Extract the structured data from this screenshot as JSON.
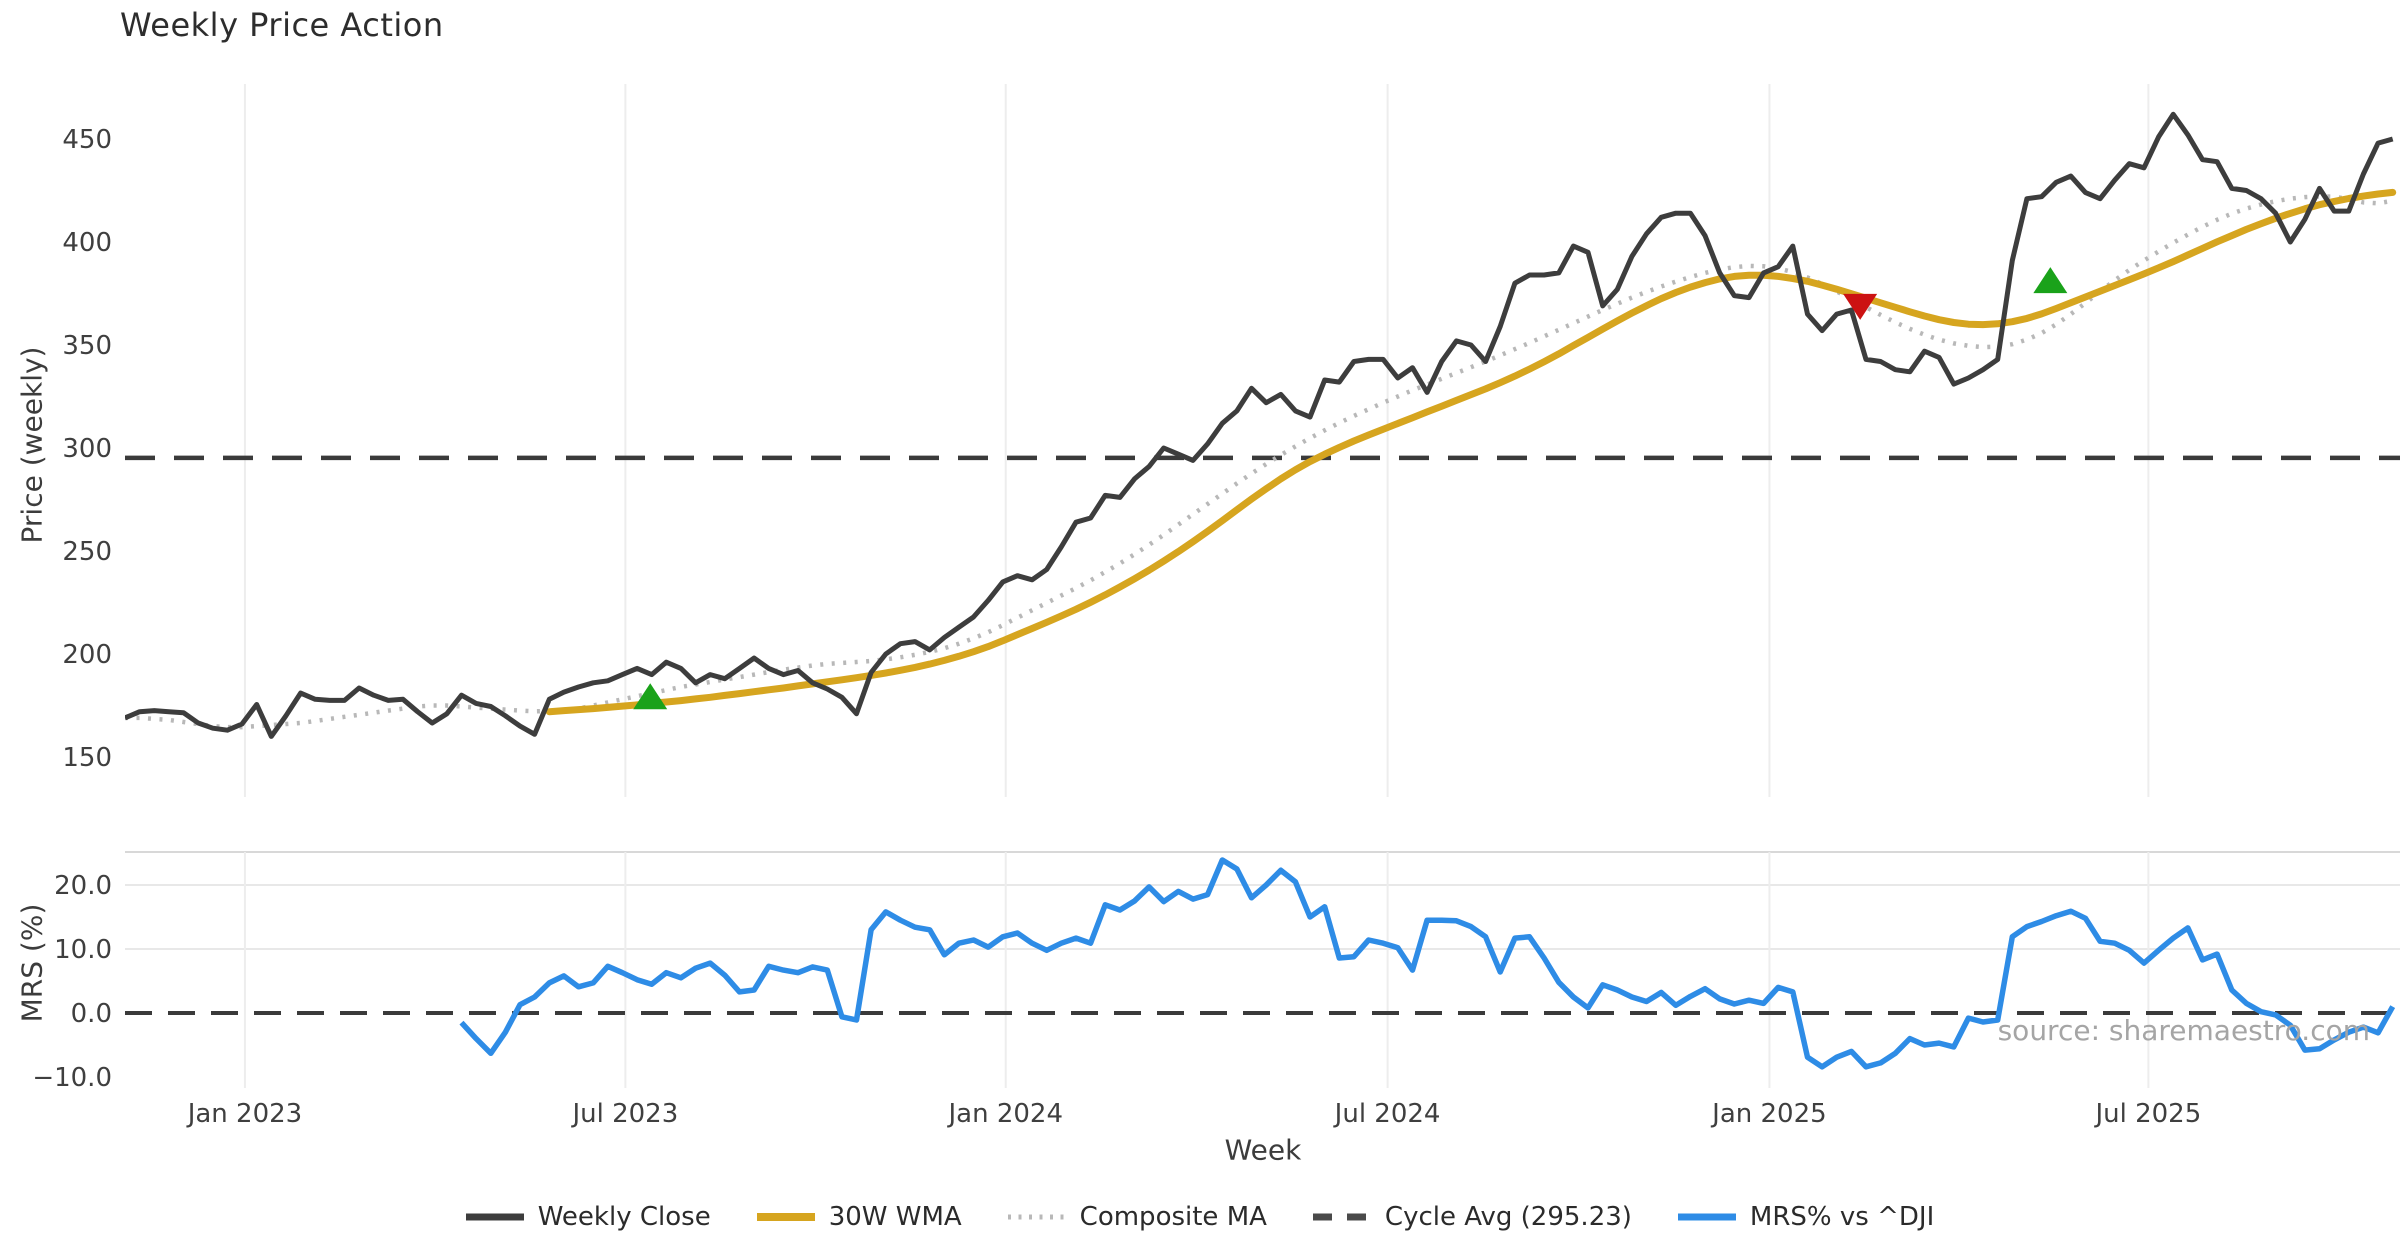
{
  "title": "Weekly Price Action",
  "watermark": "source: sharemaestro.com",
  "chart_data": {
    "type": "line",
    "title": "Weekly Price Action",
    "grid": "vertical-light",
    "x": {
      "label": "Week",
      "unit": "weeks",
      "n_points": 156,
      "ticks": [
        {
          "label": "Jan 2023",
          "week": 8.2
        },
        {
          "label": "Jul 2023",
          "week": 34.2
        },
        {
          "label": "Jan 2024",
          "week": 60.2
        },
        {
          "label": "Jul 2024",
          "week": 86.3
        },
        {
          "label": "Jan 2025",
          "week": 112.4
        },
        {
          "label": "Jul 2025",
          "week": 138.3
        }
      ]
    },
    "panels": [
      {
        "name": "price",
        "ylabel": "Price (weekly)",
        "ylim": [
          140,
          476
        ],
        "yticks": [
          {
            "label": "150",
            "value": 150
          },
          {
            "label": "200",
            "value": 200
          },
          {
            "label": "250",
            "value": 250
          },
          {
            "label": "300",
            "value": 300
          },
          {
            "label": "350",
            "value": 350
          },
          {
            "label": "400",
            "value": 400
          },
          {
            "label": "450",
            "value": 450
          }
        ],
        "hline": {
          "name": "Cycle Avg (295.23)",
          "value": 295.23,
          "color": "#3a3a3a",
          "style": "dashed"
        },
        "series": [
          {
            "name": "Composite MA",
            "color": "#b8b8b8",
            "style": "dotted",
            "width": 4.5,
            "values": [
              169,
              169,
              168.5,
              168,
              167,
              166,
              165,
              164.5,
              164.5,
              165,
              165.5,
              166,
              166.5,
              167.5,
              168.5,
              169.5,
              170.5,
              171.5,
              172.5,
              173.5,
              174.5,
              175,
              175,
              174.5,
              174,
              173.5,
              173,
              172.5,
              172.2,
              172.3,
              172.8,
              173.5,
              175,
              176.5,
              178,
              179.5,
              181,
              182.5,
              184,
              185.2,
              186.4,
              187.6,
              188.8,
              190,
              191.2,
              192.4,
              193.4,
              194.4,
              195.2,
              195.7,
              196.1,
              196.6,
              197.4,
              198.4,
              199.6,
              201,
              202.8,
              205,
              207.6,
              210.6,
              214,
              217.6,
              221.2,
              224.8,
              228.4,
              232,
              235.8,
              239.8,
              244,
              248.4,
              253,
              257.8,
              262.8,
              267.8,
              272.8,
              277.8,
              282.8,
              287.6,
              292.2,
              296.6,
              300.8,
              304.8,
              308.6,
              312.2,
              315.6,
              318.8,
              322,
              325,
              328,
              330.8,
              333.6,
              336.4,
              339.2,
              342,
              345,
              348,
              351,
              354.2,
              357.4,
              360.6,
              363.8,
              367,
              370,
              373,
              375.8,
              378.4,
              380.8,
              383,
              385,
              386.6,
              387.8,
              388.4,
              388.2,
              387.2,
              385.4,
              382.8,
              379.6,
              376,
              372.2,
              368.4,
              364.6,
              361,
              357.8,
              355,
              352.6,
              350.8,
              349.6,
              349,
              349.2,
              350.4,
              352.6,
              355.8,
              360,
              365,
              370.4,
              376,
              381.4,
              386.4,
              391,
              395.4,
              399.6,
              403.6,
              407.4,
              410.8,
              413.8,
              416.2,
              418.2,
              419.8,
              421,
              421.8,
              422.2,
              422,
              420.8,
              419.2,
              418.8,
              420
            ]
          },
          {
            "name": "30W WMA",
            "color": "#d6a51f",
            "style": "solid",
            "width": 7,
            "values": [
              null,
              null,
              null,
              null,
              null,
              null,
              null,
              null,
              null,
              null,
              null,
              null,
              null,
              null,
              null,
              null,
              null,
              null,
              null,
              null,
              null,
              null,
              null,
              null,
              null,
              null,
              null,
              null,
              null,
              172,
              172.5,
              173,
              173.5,
              174.1,
              174.7,
              175.3,
              176,
              176.7,
              177.4,
              178.2,
              179,
              179.9,
              180.8,
              181.7,
              182.6,
              183.5,
              184.5,
              185.5,
              186.5,
              187.5,
              188.5,
              189.6,
              190.8,
              192.1,
              193.5,
              195.1,
              196.9,
              198.9,
              201.1,
              203.6,
              206.4,
              209.4,
              212.4,
              215.4,
              218.5,
              221.7,
              225.1,
              228.7,
              232.5,
              236.5,
              240.7,
              245.1,
              249.7,
              254.5,
              259.5,
              264.7,
              270,
              275.2,
              280.2,
              285,
              289.4,
              293.4,
              297,
              300.3,
              303.4,
              306.3,
              309.1,
              311.9,
              314.7,
              317.5,
              320.3,
              323.1,
              325.9,
              328.7,
              331.7,
              334.9,
              338.3,
              341.9,
              345.7,
              349.7,
              353.7,
              357.7,
              361.7,
              365.5,
              369.1,
              372.5,
              375.5,
              378.1,
              380.3,
              382.1,
              383.3,
              383.9,
              383.9,
              383.3,
              382.3,
              380.9,
              379.1,
              377.1,
              374.9,
              372.7,
              370.5,
              368.3,
              366.1,
              364.1,
              362.3,
              360.9,
              360.1,
              359.9,
              360.3,
              361.3,
              362.9,
              365.1,
              367.7,
              370.5,
              373.3,
              376.1,
              378.9,
              381.7,
              384.5,
              387.5,
              390.5,
              393.7,
              396.9,
              400.1,
              403.1,
              406.1,
              408.9,
              411.5,
              413.9,
              416.1,
              418.1,
              419.7,
              421.1,
              422.3,
              423.3,
              424.1
            ]
          },
          {
            "name": "Weekly Close",
            "color": "#3d3d3d",
            "style": "solid",
            "width": 5,
            "values": [
              169,
              172,
              172.5,
              172,
              171.5,
              166.5,
              164,
              163,
              166,
              175.5,
              160,
              170,
              181,
              178,
              177.5,
              177.5,
              183.5,
              180,
              177.5,
              178,
              172,
              166.5,
              171,
              180,
              176,
              174.5,
              170,
              165,
              161,
              178,
              181.5,
              184,
              186,
              187,
              190,
              193,
              190,
              196,
              193,
              186,
              190,
              188,
              193,
              198,
              193,
              190,
              192,
              186,
              183,
              179,
              171,
              191,
              200,
              205,
              206,
              202,
              208,
              213,
              218,
              226,
              235,
              238,
              236,
              241,
              252,
              264,
              266,
              277,
              276,
              285,
              291,
              300,
              297,
              294,
              302,
              312,
              318,
              329,
              322,
              326,
              318,
              315,
              333,
              332,
              342,
              343,
              343,
              334,
              339,
              327,
              342,
              352,
              350,
              342,
              359,
              380,
              384,
              384,
              385,
              398,
              395,
              369,
              377,
              393,
              404,
              412,
              414,
              414,
              403,
              385,
              374,
              373,
              385,
              388,
              398,
              365,
              357,
              365,
              367,
              343,
              342,
              338,
              337,
              347,
              344,
              331,
              334,
              338,
              343,
              391,
              421,
              422,
              429,
              432,
              424,
              421,
              430,
              438,
              436,
              451,
              462,
              452,
              440,
              439,
              426,
              425,
              421,
              414,
              400,
              411,
              426,
              415,
              415,
              433,
              448,
              450
            ]
          }
        ],
        "markers": [
          {
            "shape": "triangle-up",
            "meaning": "buy-signal",
            "color": "#1aa21a",
            "week": 35.9,
            "price": 179
          },
          {
            "shape": "triangle-down",
            "meaning": "sell-signal",
            "color": "#cc1212",
            "week": 118.6,
            "price": 369
          },
          {
            "shape": "triangle-up",
            "meaning": "buy-signal",
            "color": "#1aa21a",
            "week": 131.6,
            "price": 381
          }
        ]
      },
      {
        "name": "mrs",
        "ylabel": "MRS (%)",
        "ylim": [
          -13,
          26
        ],
        "yticks": [
          {
            "label": "20.0",
            "value": 20
          },
          {
            "label": "10.0",
            "value": 10
          },
          {
            "label": "0.0",
            "value": 0
          },
          {
            "label": "−10.0",
            "value": -10
          }
        ],
        "hline": {
          "name": "zero-line",
          "value": 0,
          "color": "#3a3a3a",
          "style": "dashed"
        },
        "series": [
          {
            "name": "MRS% vs ^DJI",
            "color": "#2e8ce6",
            "style": "solid",
            "width": 5.5,
            "values": [
              null,
              null,
              null,
              null,
              null,
              null,
              null,
              null,
              null,
              null,
              null,
              null,
              null,
              null,
              null,
              null,
              null,
              null,
              null,
              null,
              null,
              null,
              null,
              -1.5,
              -4,
              -6.3,
              -3,
              1.3,
              2.5,
              4.7,
              5.8,
              4.1,
              4.7,
              7.3,
              6.3,
              5.2,
              4.5,
              6.3,
              5.5,
              7,
              7.8,
              5.9,
              3.3,
              3.6,
              7.3,
              6.7,
              6.3,
              7.2,
              6.7,
              -0.6,
              -1.1,
              13,
              15.8,
              14.5,
              13.4,
              13,
              9.1,
              10.9,
              11.4,
              10.3,
              11.9,
              12.5,
              10.9,
              9.8,
              10.9,
              11.7,
              10.9,
              16.9,
              16.1,
              17.5,
              19.7,
              17.4,
              19,
              17.8,
              18.5,
              23.9,
              22.5,
              18,
              20,
              22.3,
              20.5,
              15,
              16.6,
              8.6,
              8.8,
              11.4,
              10.9,
              10.2,
              6.7,
              14.5,
              14.5,
              14.4,
              13.5,
              11.9,
              6.4,
              11.7,
              11.9,
              8.6,
              4.8,
              2.5,
              0.8,
              4.4,
              3.6,
              2.5,
              1.8,
              3.2,
              1.2,
              2.6,
              3.8,
              2.2,
              1.4,
              2,
              1.5,
              4,
              3.3,
              -6.9,
              -8.4,
              -6.9,
              -6,
              -8.4,
              -7.8,
              -6.3,
              -4,
              -5,
              -4.7,
              -5.3,
              -0.8,
              -1.4,
              -1.1,
              11.9,
              13.5,
              14.3,
              15.2,
              15.9,
              14.8,
              11.2,
              10.9,
              9.8,
              7.8,
              9.8,
              11.7,
              13.3,
              8.3,
              9.2,
              3.6,
              1.5,
              0.2,
              -0.3,
              -1.9,
              -5.8,
              -5.6,
              -4.2,
              -3,
              -2.2,
              -3.1,
              1
            ]
          }
        ]
      }
    ],
    "legend": {
      "position": "bottom-center",
      "items": [
        {
          "label": "Weekly Close",
          "color": "#3d3d3d",
          "style": "solid",
          "width": 7
        },
        {
          "label": "30W WMA",
          "color": "#d6a51f",
          "style": "solid",
          "width": 8
        },
        {
          "label": "Composite MA",
          "color": "#b8b8b8",
          "style": "dotted",
          "width": 5
        },
        {
          "label": "Cycle Avg (295.23)",
          "color": "#4a4a4a",
          "style": "dashed",
          "width": 7
        },
        {
          "label": "MRS% vs ^DJI",
          "color": "#2e8ce6",
          "style": "solid",
          "width": 7
        }
      ]
    }
  }
}
